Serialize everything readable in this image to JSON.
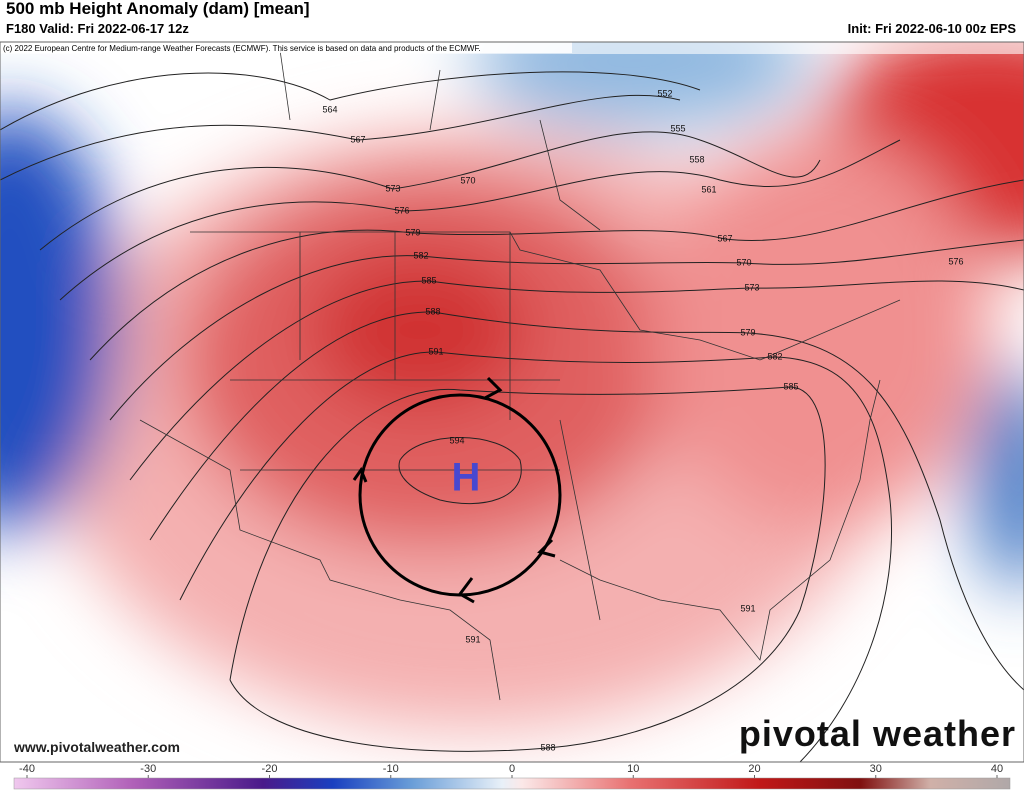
{
  "header": {
    "title": "500 mb Height Anomaly (dam) [mean]",
    "valid": "F180 Valid: Fri 2022-06-17 12z",
    "init": "Init: Fri 2022-06-10 00z EPS",
    "credit": "(c) 2022 European Centre for Medium-range Weather Forecasts (ECMWF). This service is based on data and products of the ECMWF."
  },
  "map": {
    "contour_labels": [
      "564",
      "567",
      "573",
      "576",
      "579",
      "582",
      "585",
      "588",
      "591",
      "594",
      "570",
      "552",
      "555",
      "558",
      "561",
      "567",
      "570",
      "573",
      "579",
      "582",
      "585",
      "576",
      "591",
      "591",
      "588"
    ],
    "high_label": "H"
  },
  "footer": {
    "url": "www.pivotalweather.com",
    "brand": "pivotal weather"
  },
  "colorbar": {
    "range": [
      -40,
      40
    ],
    "ticks": [
      -40,
      -30,
      -20,
      -10,
      0,
      10,
      20,
      30,
      40
    ]
  }
}
